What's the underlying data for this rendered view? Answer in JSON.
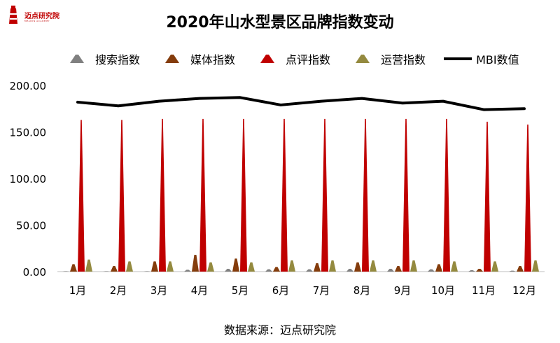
{
  "logo": {
    "name": "迈点研究院",
    "subtitle": "MEADIN ACADEMY"
  },
  "chart_data": {
    "type": "bar",
    "title": "2020年山水型景区品牌指数变动",
    "categories": [
      "1月",
      "2月",
      "3月",
      "4月",
      "5月",
      "6月",
      "7月",
      "8月",
      "9月",
      "10月",
      "11月",
      "12月"
    ],
    "ylim": [
      0,
      200
    ],
    "yticks": [
      0,
      50,
      100,
      150,
      200
    ],
    "ytick_labels": [
      "0.00",
      "50.00",
      "100.00",
      "150.00",
      "200.00"
    ],
    "series": [
      {
        "name": "搜索指数",
        "kind": "bar",
        "color": "#808080",
        "values": [
          0.5,
          0.5,
          0.5,
          2.0,
          3.0,
          2.5,
          2.5,
          3.0,
          3.0,
          2.5,
          1.5,
          1.0
        ]
      },
      {
        "name": "媒体指数",
        "kind": "bar",
        "color": "#843c0c",
        "values": [
          8.0,
          6.0,
          11.0,
          18.0,
          14.0,
          5.0,
          9.0,
          10.0,
          6.0,
          8.0,
          3.0,
          6.0
        ]
      },
      {
        "name": "点评指数",
        "kind": "bar",
        "color": "#c00000",
        "values": [
          163,
          163,
          164,
          164,
          164,
          164,
          164,
          164,
          164,
          164,
          161,
          158
        ]
      },
      {
        "name": "运营指数",
        "kind": "bar",
        "color": "#948a3f",
        "values": [
          13.0,
          11.0,
          11.0,
          10.0,
          10.0,
          12.0,
          12.0,
          12.0,
          12.0,
          11.0,
          11.0,
          12.0
        ]
      },
      {
        "name": "MBI数值",
        "kind": "line",
        "color": "#000000",
        "values": [
          182,
          178,
          183,
          186,
          187,
          179,
          183,
          186,
          181,
          183,
          174,
          175
        ]
      }
    ],
    "source": "数据来源：迈点研究院"
  }
}
